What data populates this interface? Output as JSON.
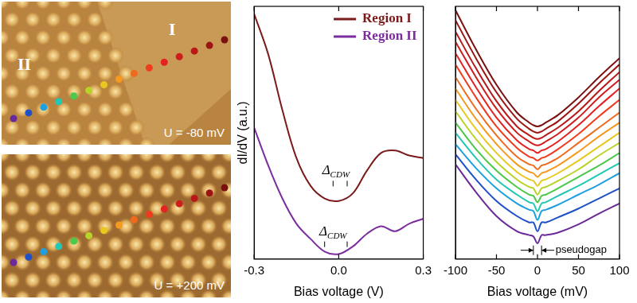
{
  "stm_images": [
    {
      "region_labels": [
        "I",
        "II"
      ],
      "bias": "U = -80 mV"
    },
    {
      "bias": "U = +200 mV"
    }
  ],
  "chart_data": [
    {
      "type": "line",
      "xlabel": "Bias voltage (V)",
      "ylabel": "dI/dV (a.u.)",
      "x": [
        -0.3,
        -0.25,
        -0.2,
        -0.15,
        -0.1,
        -0.05,
        0,
        0.05,
        0.1,
        0.15,
        0.2,
        0.25,
        0.3
      ],
      "series": [
        {
          "name": "Region I",
          "color": "#7a1a1a",
          "values": [
            9.7,
            8.1,
            5.9,
            4.0,
            2.9,
            2.4,
            2.3,
            2.6,
            3.5,
            4.2,
            4.3,
            4.1,
            4.0
          ]
        },
        {
          "name": "Region II",
          "color": "#7b2d9e",
          "values": [
            5.2,
            3.7,
            2.4,
            1.4,
            0.8,
            0.3,
            0.2,
            0.5,
            1.0,
            1.3,
            1.1,
            1.4,
            1.6
          ]
        }
      ],
      "xlim": [
        -0.3,
        0.3
      ],
      "xticks": [
        -0.3,
        {
          "value": 0,
          "label": "0.0"
        },
        0.3
      ],
      "ylim": [
        0,
        10
      ],
      "tick_labels": "x",
      "grid": false,
      "legend": "upper right",
      "annotations": [
        {
          "text": "ΔCDW",
          "x": -0.01,
          "y": 3.35,
          "gap_edges": [
            -0.02,
            0.03
          ]
        },
        {
          "text": "ΔCDW",
          "x": -0.02,
          "y": 0.95,
          "gap_edges": [
            -0.05,
            0.03
          ]
        }
      ]
    },
    {
      "type": "line",
      "xlabel": "Bias voltage (mV)",
      "x": [
        -100,
        -75,
        -50,
        -25,
        -10,
        -5,
        0,
        5,
        10,
        25,
        50,
        75,
        100
      ],
      "series": [
        {
          "color": "#7a1010",
          "values": [
            19.7,
            16.6,
            13.8,
            11.6,
            10.8,
            10.6,
            10.5,
            10.6,
            10.8,
            11.4,
            12.8,
            14.4,
            15.9
          ]
        },
        {
          "color": "#9c1414",
          "values": [
            18.9,
            15.9,
            13.2,
            11.1,
            10.3,
            10.1,
            10.0,
            10.1,
            10.3,
            10.9,
            12.3,
            13.9,
            15.4
          ]
        },
        {
          "color": "#b81818",
          "values": [
            18.0,
            15.1,
            12.5,
            10.5,
            9.8,
            9.6,
            9.5,
            9.6,
            9.8,
            10.4,
            11.7,
            13.3,
            14.8
          ]
        },
        {
          "color": "#d01c1c",
          "values": [
            17.2,
            14.4,
            11.9,
            10.0,
            9.3,
            9.1,
            9.0,
            9.1,
            9.3,
            9.9,
            11.2,
            12.8,
            14.2
          ]
        },
        {
          "color": "#e42222",
          "values": [
            16.3,
            13.6,
            11.2,
            9.4,
            8.7,
            8.6,
            8.4,
            8.6,
            8.7,
            9.3,
            10.6,
            12.1,
            13.5
          ]
        },
        {
          "color": "#f03c1e",
          "values": [
            15.4,
            12.8,
            10.5,
            8.8,
            8.1,
            8.0,
            7.8,
            8.0,
            8.1,
            8.7,
            9.9,
            11.3,
            12.6
          ]
        },
        {
          "color": "#f06a1e",
          "values": [
            14.4,
            11.9,
            9.8,
            8.1,
            7.5,
            7.4,
            7.1,
            7.4,
            7.5,
            8.0,
            9.2,
            10.4,
            11.6
          ]
        },
        {
          "color": "#f59a1e",
          "values": [
            13.5,
            11.1,
            9.1,
            7.5,
            6.9,
            6.8,
            6.5,
            6.8,
            6.9,
            7.4,
            8.5,
            9.7,
            10.8
          ]
        },
        {
          "color": "#e8c81e",
          "values": [
            12.6,
            10.3,
            8.4,
            6.9,
            6.3,
            6.2,
            5.8,
            6.2,
            6.3,
            6.8,
            7.8,
            8.9,
            10.0
          ]
        },
        {
          "color": "#b8d428",
          "values": [
            11.7,
            9.5,
            7.7,
            6.3,
            5.7,
            5.6,
            5.1,
            5.6,
            5.7,
            6.2,
            7.1,
            8.2,
            9.2
          ]
        },
        {
          "color": "#4cc84a",
          "values": [
            10.8,
            8.7,
            7.0,
            5.7,
            5.1,
            5.0,
            4.5,
            5.0,
            5.1,
            5.6,
            6.5,
            7.4,
            8.4
          ]
        },
        {
          "color": "#22c8b4",
          "values": [
            10.0,
            8.0,
            6.3,
            5.1,
            4.5,
            4.4,
            3.8,
            4.4,
            4.5,
            5.0,
            5.8,
            6.7,
            7.6
          ]
        },
        {
          "color": "#1ea0e0",
          "values": [
            9.1,
            7.2,
            5.6,
            4.4,
            3.9,
            3.8,
            3.1,
            3.8,
            3.9,
            4.3,
            5.1,
            5.9,
            6.8
          ]
        },
        {
          "color": "#2050c8",
          "values": [
            8.3,
            6.3,
            4.6,
            3.4,
            2.9,
            2.9,
            2.2,
            2.9,
            2.9,
            3.3,
            4.0,
            4.8,
            5.6
          ]
        },
        {
          "color": "#6a2a9c",
          "values": [
            7.5,
            5.3,
            3.4,
            2.2,
            1.9,
            1.8,
            1.25,
            1.9,
            1.9,
            2.1,
            2.75,
            3.6,
            4.4
          ]
        }
      ],
      "xlim": [
        -100,
        100
      ],
      "xticks": [
        -100,
        -50,
        0,
        50,
        100
      ],
      "ylim": [
        0,
        20
      ],
      "tick_labels": "x",
      "grid": false,
      "annotations": [
        {
          "text": "pseudogap",
          "x": 22,
          "y": 0.7,
          "gap_edges": [
            -5,
            5
          ]
        }
      ]
    }
  ]
}
